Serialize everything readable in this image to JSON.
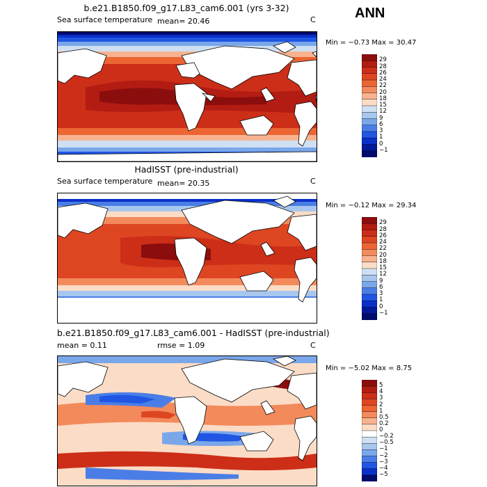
{
  "season": "ANN",
  "chart_data": [
    {
      "type": "heatmap",
      "title": "b.e21.B1850.f09_g17.L83_cam6.001 (yrs 3-32)",
      "left_label": "Sea surface temperature",
      "stat_text": "mean=   20.46",
      "units": "C",
      "min_max_text": "Min =  −0.73 Max =  30.47",
      "min": -0.73,
      "max": 30.47,
      "mean": 20.46,
      "colorbar_labels": [
        "29",
        "28",
        "26",
        "24",
        "22",
        "20",
        "18",
        "15",
        "12",
        "9",
        "6",
        "3",
        "1",
        "0",
        "−1"
      ],
      "colorbar_colors": [
        "#8c0d0d",
        "#b21c12",
        "#cc2e18",
        "#de4622",
        "#ec6532",
        "#f38a5c",
        "#f7b38f",
        "#fbdcc6",
        "#cfe0f3",
        "#a8c7ee",
        "#7aa7ea",
        "#4a7ee6",
        "#2056e3",
        "#0a30c8",
        "#021a99",
        "#000b6b"
      ]
    },
    {
      "type": "heatmap",
      "title": "HadISST (pre-industrial)",
      "left_label": "Sea surface temperature",
      "stat_text": "mean=   20.35",
      "units": "C",
      "min_max_text": "Min =  −0.12 Max =  29.34",
      "min": -0.12,
      "max": 29.34,
      "mean": 20.35,
      "colorbar_labels": [
        "29",
        "28",
        "26",
        "24",
        "22",
        "20",
        "18",
        "15",
        "12",
        "9",
        "6",
        "3",
        "1",
        "0",
        "−1"
      ],
      "colorbar_colors": [
        "#8c0d0d",
        "#b21c12",
        "#cc2e18",
        "#de4622",
        "#ec6532",
        "#f38a5c",
        "#f7b38f",
        "#fbdcc6",
        "#cfe0f3",
        "#a8c7ee",
        "#7aa7ea",
        "#4a7ee6",
        "#2056e3",
        "#0a30c8",
        "#021a99",
        "#000b6b"
      ]
    },
    {
      "type": "heatmap",
      "title": "b.e21.B1850.f09_g17.L83_cam6.001 - HadISST (pre-industrial)",
      "left_label": "mean =    0.11",
      "stat_text": "rmse =   1.09",
      "units": "C",
      "min_max_text": "Min =  −5.02 Max =   8.75",
      "min": -5.02,
      "max": 8.75,
      "mean": 0.11,
      "rmse": 1.09,
      "colorbar_labels": [
        "5",
        "4",
        "3",
        "2",
        "1",
        "0.5",
        "0.2",
        "0",
        "−0.2",
        "−0.5",
        "−1",
        "−2",
        "−3",
        "−4",
        "−5"
      ],
      "colorbar_colors": [
        "#8c0d0d",
        "#b21c12",
        "#cc2e18",
        "#de4622",
        "#ec6532",
        "#f38a5c",
        "#f7b38f",
        "#fbdcc6",
        "#ffffff",
        "#cfe0f3",
        "#a8c7ee",
        "#7aa7ea",
        "#4a7ee6",
        "#2056e3",
        "#0a30c8",
        "#000b6b"
      ]
    }
  ]
}
